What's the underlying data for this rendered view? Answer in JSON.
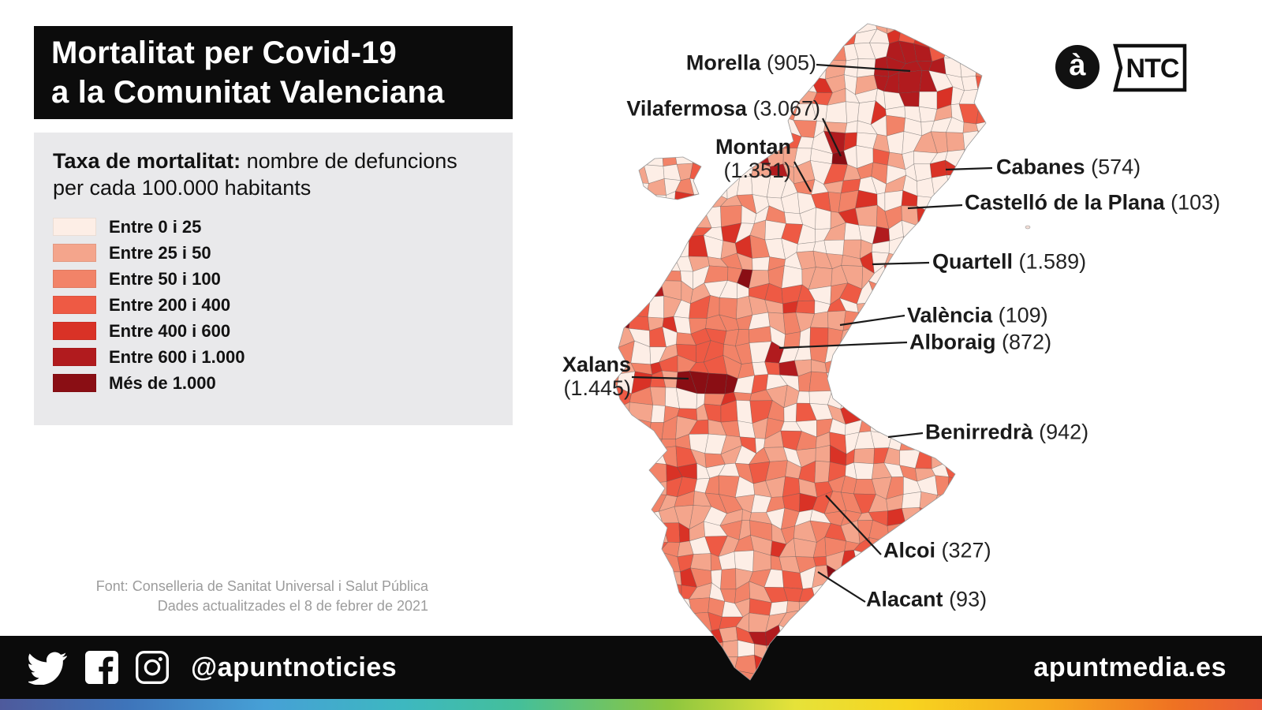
{
  "title": {
    "line1": "Mortalitat per Covid-19",
    "line2": "a la Comunitat Valenciana"
  },
  "legend": {
    "heading_bold": "Taxa de mortalitat:",
    "heading_rest": " nombre de defuncions per cada 100.000 habitants",
    "items": [
      {
        "label": "Entre 0 i 25",
        "color": "#fdeee6"
      },
      {
        "label": "Entre 25 i 50",
        "color": "#f4a58c"
      },
      {
        "label": "Entre 50 i 100",
        "color": "#f28368"
      },
      {
        "label": "Entre 200 i 400",
        "color": "#ee5a44"
      },
      {
        "label": "Entre 400 i 600",
        "color": "#d93226"
      },
      {
        "label": "Entre 600 i 1.000",
        "color": "#b11b1e"
      },
      {
        "label": "Més de 1.000",
        "color": "#8a0e14"
      }
    ]
  },
  "map_labels": [
    {
      "id": "morella",
      "name": "Morella",
      "value": "(905)"
    },
    {
      "id": "vilafermosa",
      "name": "Vilafermosa",
      "value": "(3.067)"
    },
    {
      "id": "montan",
      "name": "Montan",
      "value": "(1.351)"
    },
    {
      "id": "cabanes",
      "name": "Cabanes",
      "value": "(574)"
    },
    {
      "id": "castello",
      "name": "Castelló de la Plana",
      "value": "(103)"
    },
    {
      "id": "quartell",
      "name": "Quartell",
      "value": "(1.589)"
    },
    {
      "id": "valencia",
      "name": "València",
      "value": "(109)"
    },
    {
      "id": "alboraig",
      "name": "Alboraig",
      "value": "(872)"
    },
    {
      "id": "xalans",
      "name": "Xalans",
      "value": "(1.445)"
    },
    {
      "id": "benirredra",
      "name": "Benirredrà",
      "value": "(942)"
    },
    {
      "id": "alcoi",
      "name": "Alcoi",
      "value": "(327)"
    },
    {
      "id": "alacant",
      "name": "Alacant",
      "value": "(93)"
    }
  ],
  "source": {
    "line1": "Font: Conselleria de Sanitat Universal i Salut Pública",
    "line2": "Dades actualitzades el 8 de febrer de 2021"
  },
  "footer": {
    "handle": "@apuntnoticies",
    "website": "apuntmedia.es"
  },
  "logos": {
    "apunt": "à",
    "ntc": "NTC"
  },
  "chart_data": {
    "type": "choropleth",
    "region": "Comunitat Valenciana",
    "title": "Mortalitat per Covid-19 a la Comunitat Valenciana",
    "metric": "Taxa de mortalitat: nombre de defuncions per cada 100.000 habitants",
    "buckets": [
      {
        "label": "Entre 0 i 25",
        "color": "#fdeee6"
      },
      {
        "label": "Entre 25 i 50",
        "color": "#f4a58c"
      },
      {
        "label": "Entre 50 i 100",
        "color": "#f28368"
      },
      {
        "label": "Entre 200 i 400",
        "color": "#ee5a44"
      },
      {
        "label": "Entre 400 i 600",
        "color": "#d93226"
      },
      {
        "label": "Entre 600 i 1.000",
        "color": "#b11b1e"
      },
      {
        "label": "Més de 1.000",
        "color": "#8a0e14"
      }
    ],
    "labeled_municipalities": [
      {
        "name": "Morella",
        "rate": 905
      },
      {
        "name": "Vilafermosa",
        "rate": 3067
      },
      {
        "name": "Montan",
        "rate": 1351
      },
      {
        "name": "Cabanes",
        "rate": 574
      },
      {
        "name": "Castelló de la Plana",
        "rate": 103
      },
      {
        "name": "Quartell",
        "rate": 1589
      },
      {
        "name": "València",
        "rate": 109
      },
      {
        "name": "Alboraig",
        "rate": 872
      },
      {
        "name": "Xalans",
        "rate": 1445
      },
      {
        "name": "Benirredrà",
        "rate": 942
      },
      {
        "name": "Alcoi",
        "rate": 327
      },
      {
        "name": "Alacant",
        "rate": 93
      }
    ],
    "source": "Font: Conselleria de Sanitat Universal i Salut Pública",
    "updated": "Dades actualitzades el 8 de febrer de 2021"
  }
}
